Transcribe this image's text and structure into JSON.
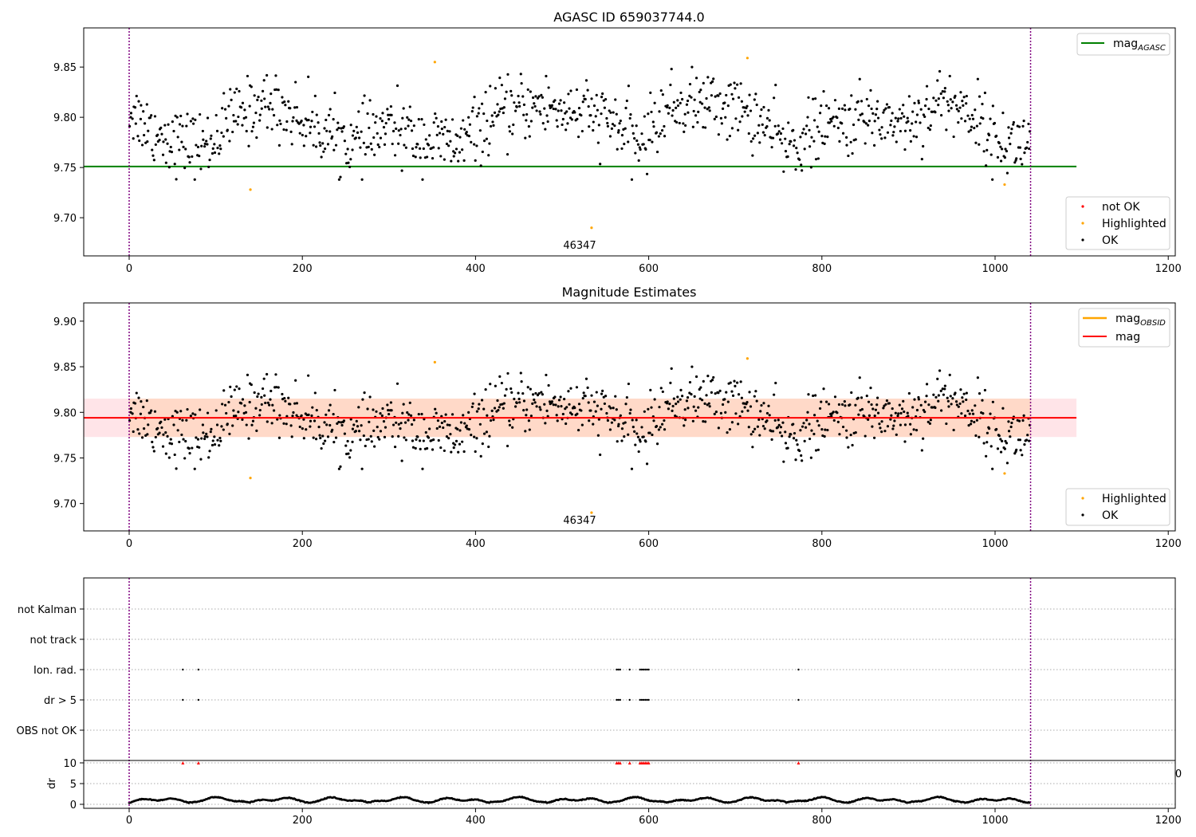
{
  "colors": {
    "ok": "#000000",
    "highlighted": "#ffa500",
    "not_ok": "#ff0000",
    "mag_agasc": "#008000",
    "mag_obsid": "#ffa500",
    "mag": "#ff0000",
    "band_pink": "#ffe4e8",
    "band_orange": "#ffd9c8",
    "vline": "#800080"
  },
  "chart_data": [
    {
      "type": "scatter",
      "title": "AGASC ID 659037744.0",
      "xlim": [
        -52,
        1208
      ],
      "ylim": [
        9.662,
        9.889
      ],
      "xticks": [
        "0",
        "200",
        "400",
        "600",
        "800",
        "1000",
        "1200"
      ],
      "yticks": [
        "9.70",
        "9.75",
        "9.80",
        "9.85"
      ],
      "vlines": [
        0,
        1041
      ],
      "hline": {
        "name": "mag_AGASC",
        "y": 9.751,
        "x": [
          -52,
          1094
        ]
      },
      "obsid_label": {
        "text": "46347",
        "x": 520
      },
      "legend_top": [
        {
          "label": "mag",
          "sub": "AGASC"
        }
      ],
      "legend_bottom": [
        "not OK",
        "Highlighted",
        "OK"
      ],
      "highlighted_points": [
        [
          140,
          9.728
        ],
        [
          353,
          9.855
        ],
        [
          534,
          9.69
        ],
        [
          714,
          9.859
        ],
        [
          1011,
          9.733
        ]
      ],
      "ok_points_seed": 12345
    },
    {
      "type": "scatter",
      "title": "Magnitude Estimates",
      "xlim": [
        -52,
        1208
      ],
      "ylim": [
        9.67,
        9.92
      ],
      "xticks": [
        "0",
        "200",
        "400",
        "600",
        "800",
        "1000",
        "1200"
      ],
      "yticks": [
        "9.70",
        "9.75",
        "9.80",
        "9.85",
        "9.90"
      ],
      "vlines": [
        0,
        1041
      ],
      "mag_line": {
        "y": 9.794,
        "x": [
          -52,
          1094
        ]
      },
      "band": {
        "y": [
          9.773,
          9.815
        ],
        "x": [
          -52,
          1094
        ],
        "x_inner": [
          0,
          1041
        ]
      },
      "obsid_label": {
        "text": "46347",
        "x": 520
      },
      "legend_top": [
        {
          "label": "mag",
          "sub": "OBSID"
        },
        {
          "label": "mag",
          "sub": ""
        }
      ],
      "legend_bottom": [
        "Highlighted",
        "OK"
      ],
      "highlighted_points": [
        [
          140,
          9.728
        ],
        [
          353,
          9.855
        ],
        [
          534,
          9.69
        ],
        [
          714,
          9.859
        ],
        [
          1011,
          9.733
        ]
      ]
    },
    {
      "type": "scatter",
      "title": "",
      "xlim": [
        -52,
        1208
      ],
      "xticks": [
        "0",
        "200",
        "400",
        "600",
        "800",
        "1000",
        "1200"
      ],
      "categories": [
        "not Kalman",
        "not track",
        "Ion. rad.",
        "dr > 5",
        "OBS not OK"
      ],
      "flag_points": {
        "Ion. rad.": [
          62,
          80,
          563,
          565,
          567,
          578,
          590,
          592,
          594,
          596,
          598,
          600,
          773
        ],
        "dr > 5": [
          62,
          80,
          563,
          565,
          567,
          578,
          590,
          592,
          594,
          596,
          598,
          600,
          773
        ]
      },
      "dr_ylabel": "dr",
      "dr_yticks": [
        "0",
        "5",
        "10"
      ],
      "dr_ylim": [
        0,
        10
      ],
      "dr_clipped_points": [
        62,
        80,
        563,
        565,
        567,
        578,
        590,
        592,
        594,
        596,
        598,
        600,
        773
      ],
      "stray_tick": "0",
      "vlines": [
        0,
        1041
      ]
    }
  ]
}
